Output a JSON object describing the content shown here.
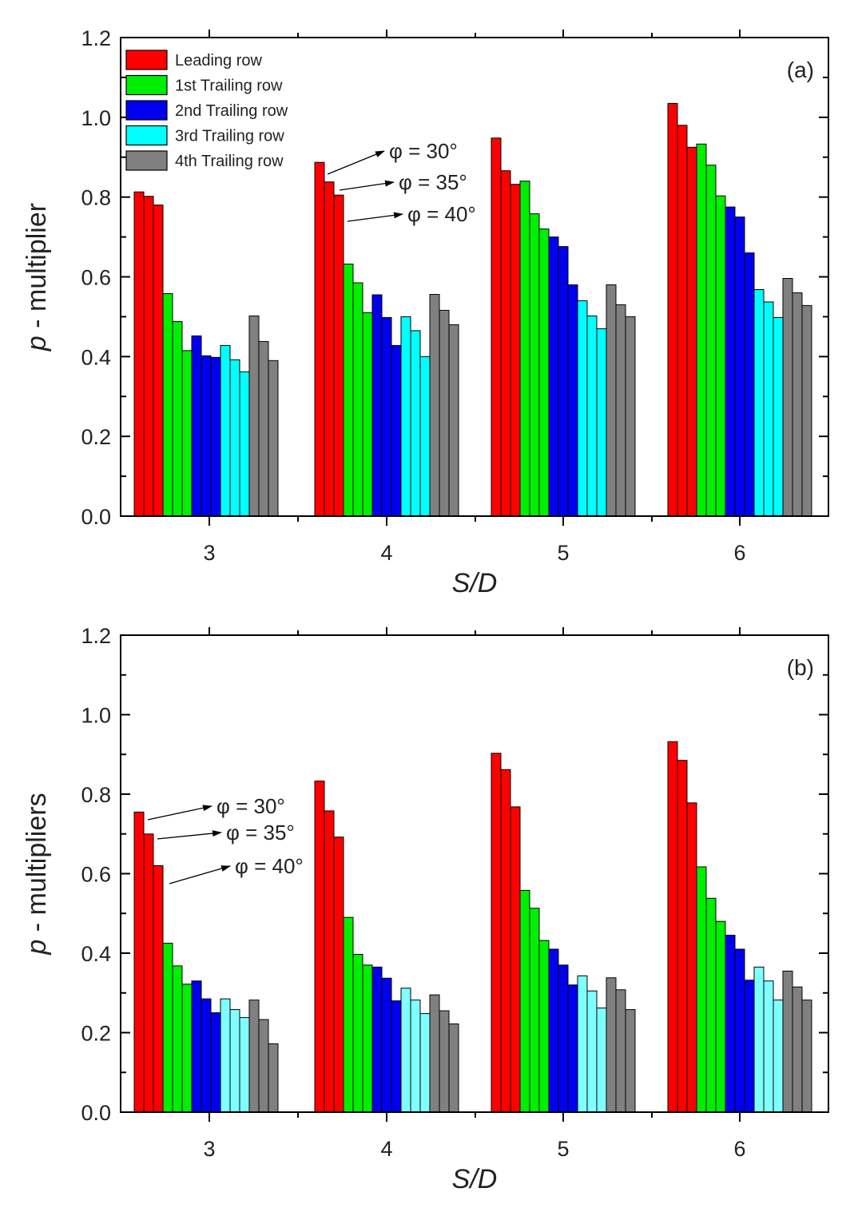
{
  "colors": {
    "Leading row": "#ff0000",
    "1st Trailing row": "#00ee00",
    "2nd Trailing row": "#0000ee",
    "3rd Trailing row": "#00ffff",
    "4th Trailing row": "#808080"
  },
  "chart_data": [
    {
      "type": "bar",
      "panel_label": "(a)",
      "xlabel": "S/D",
      "ylabel_italic": "p",
      "ylabel_rest": " - multiplier",
      "ylim": [
        0,
        1.2
      ],
      "yticks": [
        "0.0",
        "0.2",
        "0.4",
        "0.6",
        "0.8",
        "1.0",
        "1.2"
      ],
      "categories": [
        "3",
        "4",
        "5",
        "6"
      ],
      "legend": [
        "Leading row",
        "1st Trailing row",
        "2nd Trailing row",
        "3rd Trailing row",
        "4th Trailing row"
      ],
      "bar_fill": {
        "Leading row": "#ff0000",
        "1st Trailing row": "#00ee00",
        "2nd Trailing row": "#0000ee",
        "3rd Trailing row": "#00ffff",
        "4th Trailing row": "#808080"
      },
      "sub_bars": [
        "φ = 30°",
        "φ = 35°",
        "φ = 40°"
      ],
      "series": [
        {
          "name": "Leading row",
          "values": [
            [
              0.813,
              0.802,
              0.78
            ],
            [
              0.887,
              0.838,
              0.805
            ],
            [
              0.948,
              0.866,
              0.832
            ],
            [
              1.035,
              0.98,
              0.925
            ]
          ]
        },
        {
          "name": "1st Trailing row",
          "values": [
            [
              0.558,
              0.488,
              0.415
            ],
            [
              0.632,
              0.585,
              0.51
            ],
            [
              0.84,
              0.758,
              0.72
            ],
            [
              0.933,
              0.88,
              0.803
            ]
          ]
        },
        {
          "name": "2nd Trailing row",
          "values": [
            [
              0.452,
              0.402,
              0.398
            ],
            [
              0.555,
              0.498,
              0.428
            ],
            [
              0.7,
              0.676,
              0.58
            ],
            [
              0.775,
              0.75,
              0.66
            ]
          ]
        },
        {
          "name": "3rd Trailing row",
          "values": [
            [
              0.428,
              0.392,
              0.362
            ],
            [
              0.5,
              0.465,
              0.4
            ],
            [
              0.54,
              0.502,
              0.47
            ],
            [
              0.568,
              0.537,
              0.498
            ]
          ]
        },
        {
          "name": "4th Trailing row",
          "values": [
            [
              0.502,
              0.438,
              0.39
            ],
            [
              0.556,
              0.516,
              0.48
            ],
            [
              0.58,
              0.53,
              0.5
            ],
            [
              0.596,
              0.56,
              0.528
            ]
          ]
        }
      ],
      "annotations": [
        "φ = 30°",
        "φ = 35°",
        "φ = 40°"
      ]
    },
    {
      "type": "bar",
      "panel_label": "(b)",
      "xlabel": "S/D",
      "ylabel_italic": "p",
      "ylabel_rest": " - multipliers",
      "ylim": [
        0,
        1.2
      ],
      "yticks": [
        "0.0",
        "0.2",
        "0.4",
        "0.6",
        "0.8",
        "1.0",
        "1.2"
      ],
      "categories": [
        "3",
        "4",
        "5",
        "6"
      ],
      "legend": [],
      "bar_fill": {
        "Leading row": "#ff0000",
        "1st Trailing row": "#00ee00",
        "2nd Trailing row": "#0000ee",
        "3rd Trailing row": "#80ffff",
        "4th Trailing row": "#808080"
      },
      "sub_bars": [
        "φ = 30°",
        "φ = 35°",
        "φ = 40°"
      ],
      "series": [
        {
          "name": "Leading row",
          "values": [
            [
              0.755,
              0.7,
              0.62
            ],
            [
              0.833,
              0.758,
              0.692
            ],
            [
              0.903,
              0.862,
              0.768
            ],
            [
              0.932,
              0.885,
              0.778
            ]
          ]
        },
        {
          "name": "1st Trailing row",
          "values": [
            [
              0.425,
              0.368,
              0.322
            ],
            [
              0.49,
              0.397,
              0.37
            ],
            [
              0.558,
              0.513,
              0.432
            ],
            [
              0.617,
              0.538,
              0.48
            ]
          ]
        },
        {
          "name": "2nd Trailing row",
          "values": [
            [
              0.33,
              0.285,
              0.25
            ],
            [
              0.365,
              0.337,
              0.28
            ],
            [
              0.41,
              0.37,
              0.32
            ],
            [
              0.445,
              0.41,
              0.332
            ]
          ]
        },
        {
          "name": "3rd Trailing row",
          "values": [
            [
              0.285,
              0.258,
              0.238
            ],
            [
              0.312,
              0.282,
              0.248
            ],
            [
              0.343,
              0.305,
              0.262
            ],
            [
              0.365,
              0.33,
              0.282
            ]
          ]
        },
        {
          "name": "4th Trailing row",
          "values": [
            [
              0.282,
              0.233,
              0.172
            ],
            [
              0.295,
              0.255,
              0.222
            ],
            [
              0.338,
              0.308,
              0.258
            ],
            [
              0.355,
              0.315,
              0.282
            ]
          ]
        }
      ],
      "annotations": [
        "φ = 30°",
        "φ = 35°",
        "φ = 40°"
      ]
    }
  ]
}
